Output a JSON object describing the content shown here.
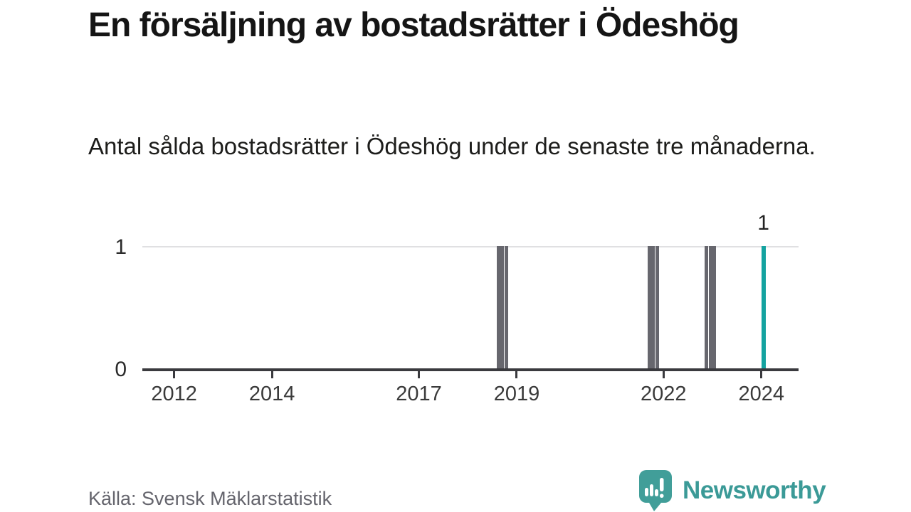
{
  "title": "En försäljning av bostadsrätter i Ödeshög",
  "subtitle": "Antal sålda bostadsrätter i Ödeshög under de senaste tre månaderna.",
  "source": "Källa: Svensk Mäklarstatistik",
  "logo": {
    "text": "Newsworthy",
    "icon": "bar-chart-speech-bubble-icon"
  },
  "colors": {
    "accent": "#14a3a0",
    "bar_gray": "#67676e",
    "axis": "#3a3a3e",
    "grid": "#e0e0e2",
    "title_text": "#151515",
    "muted_text": "#65656d",
    "logo_teal": "#3b9a97"
  },
  "chart_data": {
    "type": "bar",
    "title": "En försäljning av bostadsrätter i Ödeshög",
    "subtitle": "Antal sålda bostadsrätter i Ödeshög under de senaste tre månaderna.",
    "xlabel": "",
    "ylabel": "",
    "xlim": [
      2011.35,
      2024.76
    ],
    "ylim": [
      0,
      1
    ],
    "x_ticks": [
      2012,
      2014,
      2017,
      2019,
      2022,
      2024
    ],
    "y_ticks": [
      0,
      1
    ],
    "grid": "top gridline at y=1 only",
    "legend": "none",
    "unit": "antal sålda bostadsrätter per 3-månadersperiod",
    "bars": [
      {
        "period": "2018-08",
        "value": 1
      },
      {
        "period": "2018-09",
        "value": 1
      },
      {
        "period": "2018-10",
        "value": 1
      },
      {
        "period": "2021-09",
        "value": 1
      },
      {
        "period": "2021-10",
        "value": 1
      },
      {
        "period": "2021-11",
        "value": 1
      },
      {
        "period": "2022-11",
        "value": 1
      },
      {
        "period": "2022-12",
        "value": 1
      },
      {
        "period": "2023-01",
        "value": 1
      },
      {
        "period": "2024-01",
        "value": 1,
        "highlight": true,
        "label": "1"
      }
    ]
  }
}
